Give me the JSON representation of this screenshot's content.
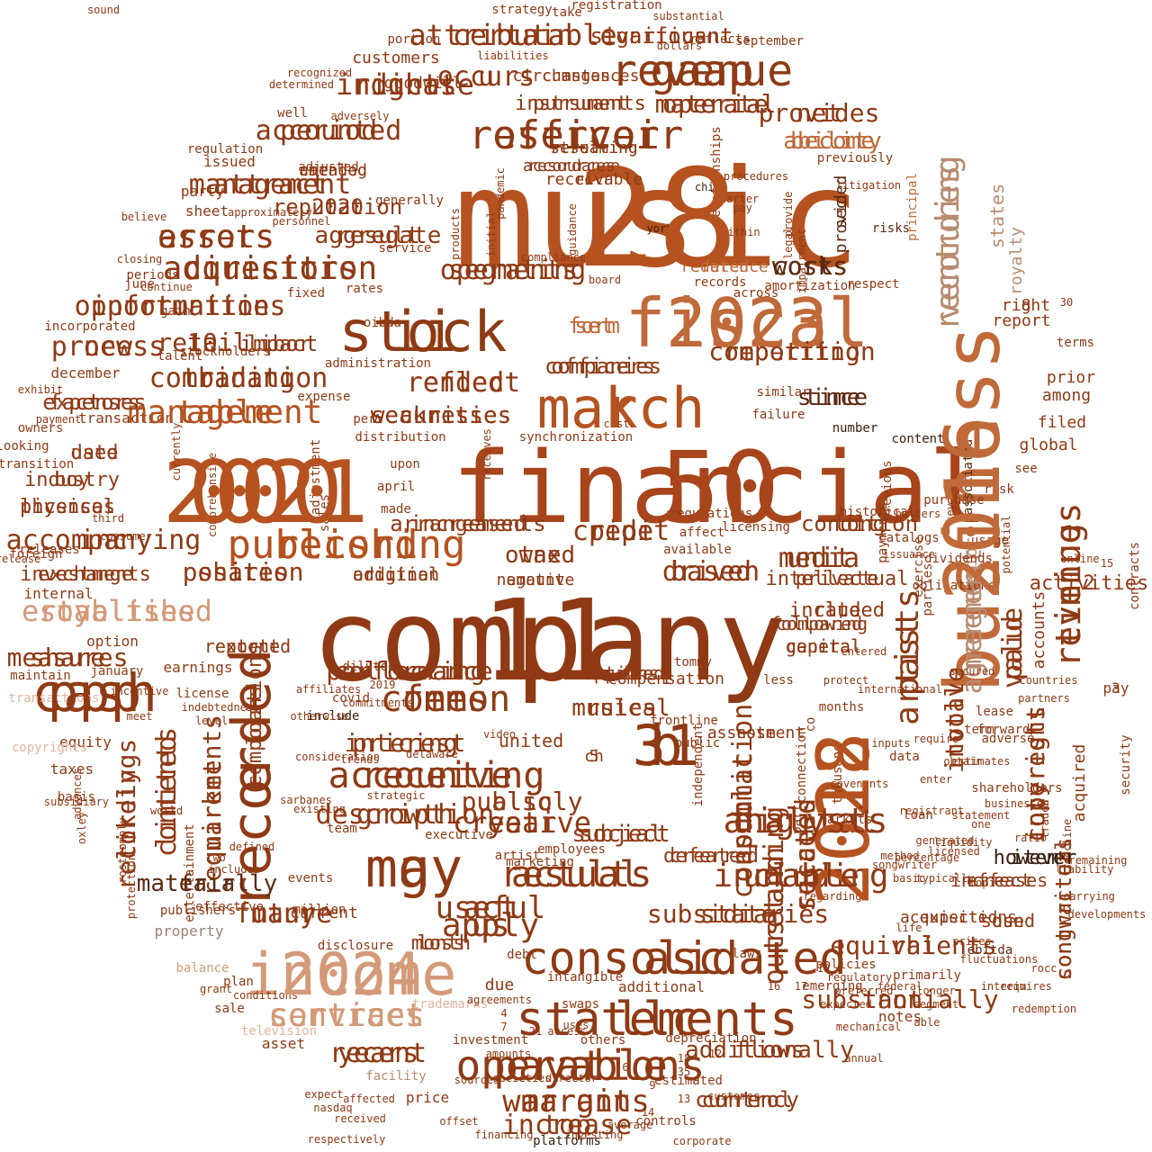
{
  "palette": {
    "c1": "#a8451b",
    "c2": "#b5521f",
    "c3": "#8f3a14",
    "c4": "#c06a3a",
    "c5": "#7a3210",
    "c6": "#d49a78",
    "c7": "#b88b70",
    "c8": "#5c2a10",
    "c9": "#e0b49c",
    "c10": "#9c8078",
    "c11": "#3a2010"
  },
  "words": [
    "music",
    "company",
    "financial",
    "2021",
    "business",
    "2022",
    "fiscal",
    "income",
    "stock",
    "march",
    "31",
    "recorded",
    "may",
    "cash",
    "consolidated",
    "statements",
    "revenue",
    "reservoir",
    "publishing",
    "operations",
    "revenues",
    "recording",
    "artists",
    "digital",
    "results",
    "accounting",
    "common",
    "acquisition",
    "assets",
    "including",
    "royalties",
    "warrants",
    "services",
    "table",
    "certain",
    "rights",
    "management",
    "information",
    "new",
    "inc",
    "combination",
    "reporting",
    "operating",
    "costs",
    "net",
    "period",
    "material",
    "media",
    "credit",
    "based",
    "shares",
    "share",
    "exchange",
    "market",
    "contents",
    "interest",
    "performance",
    "future",
    "growth",
    "subsidiaries",
    "rhi",
    "non",
    "agreement",
    "value",
    "copyright",
    "songwriters",
    "public",
    "total",
    "outstanding",
    "related",
    "years",
    "increase",
    "significant",
    "ended",
    "securities",
    "time",
    "ability",
    "companies",
    "form",
    "condition",
    "tax",
    "fair",
    "us",
    "act",
    "year",
    "subject",
    "also",
    "musical",
    "flows",
    "control",
    "item",
    "loss",
    "recordings",
    "compositions",
    "physical",
    "industry",
    "date",
    "expenses",
    "impact",
    "u",
    "pursuant",
    "changes",
    "streaming",
    "accordance",
    "roth",
    "catalog",
    "2020",
    "result",
    "sec",
    "increased",
    "addition",
    "amount",
    "required",
    "reported",
    "capital",
    "following",
    "rate",
    "intellectual",
    "reference",
    "10",
    "8",
    "2",
    "3",
    "5",
    "1",
    "note",
    "deferred",
    "effect",
    "use",
    "acquisitions",
    "current",
    "united",
    "filed",
    "prior",
    "report",
    "states",
    "royalty",
    "senior",
    "global",
    "among",
    "accounts",
    "acquired",
    "security",
    "contracts",
    "ebitda",
    "notes",
    "primarily",
    "emerging",
    "additional",
    "due",
    "debt",
    "investment",
    "others",
    "depreciation",
    "price",
    "facility",
    "asset",
    "property",
    "effective",
    "marketing",
    "artist",
    "employees",
    "executive",
    "team",
    "plan",
    "basis",
    "taxes",
    "equity",
    "license",
    "earnings",
    "maintain",
    "foreign",
    "internal",
    "exhibit",
    "december",
    "june",
    "closing",
    "incorporated",
    "rates",
    "oibda",
    "administration",
    "expense",
    "per",
    "upon",
    "april",
    "made",
    "sales",
    "adjustment",
    "distribution",
    "synchronization",
    "affect",
    "available",
    "regulations",
    "catalogs",
    "licensing",
    "number",
    "content",
    "associated",
    "see",
    "terms",
    "months",
    "thousand",
    "connection",
    "part",
    "data",
    "co",
    "less",
    "public",
    "independent",
    "tommy",
    "frontline",
    "covid",
    "include",
    "events",
    "million",
    "disclosure",
    "publishers",
    "protection",
    "balance",
    "grant",
    "sale",
    "conditions",
    "television",
    "transactions",
    "copyrights",
    "consideration",
    "entertainment",
    "policies",
    "laws",
    "intangible",
    "swaps",
    "trademarks",
    "estimated",
    "customer",
    "platforms",
    "investing",
    "sources",
    "societies",
    "director",
    "average",
    "controls",
    "york",
    "risks",
    "chief",
    "quarter",
    "pay",
    "within",
    "litigation",
    "principal",
    "previously",
    "provide",
    "procedures",
    "pandemic",
    "guidance",
    "compliance",
    "products",
    "initial",
    "board",
    "records",
    "amortization",
    "respect",
    "obligations",
    "purchase",
    "previous",
    "payments",
    "exercise",
    "issuance",
    "parties",
    "lease",
    "forward",
    "adverse",
    "term",
    "loan",
    "markets",
    "shareholders",
    "dividends",
    "usage",
    "key",
    "risk",
    "holders",
    "potential",
    "historical",
    "looking",
    "sound",
    "strategy",
    "registration",
    "substantial",
    "take",
    "portion",
    "liabilities",
    "dollars",
    "reflects",
    "september",
    "customers",
    "goodwill",
    "recognized",
    "determined",
    "well",
    "adversely",
    "issued",
    "adjusted",
    "regulation",
    "party",
    "sheet",
    "generally",
    "believe",
    "approximately",
    "personnel",
    "service",
    "periods",
    "continue",
    "gain",
    "fixed",
    "stockholders",
    "talent",
    "transaction",
    "owners",
    "payment",
    "transition",
    "currently",
    "comprehensive",
    "third",
    "consumer",
    "release",
    "releases",
    "option",
    "january",
    "meet",
    "incentive",
    "indebtedness",
    "level",
    "affiliates",
    "2019",
    "diluted",
    "commitments",
    "otherwise",
    "trends",
    "delaware",
    "strategic",
    "sarbanes",
    "existing",
    "defined",
    "includes",
    "two",
    "comply",
    "oxley",
    "advances",
    "subsidiary",
    "world",
    "roster",
    "video",
    "receives",
    "cost",
    "obtain",
    "international",
    "protect",
    "entered",
    "inputs",
    "secured",
    "statement",
    "businesses",
    "ratio",
    "traded",
    "partners",
    "countries",
    "mechanical",
    "annual",
    "preferred",
    "expected",
    "amounts",
    "agreements",
    "uses",
    "federal",
    "longer",
    "segment",
    "able",
    "decline",
    "developments",
    "remaining",
    "liability",
    "carrying",
    "expect",
    "nasdaq",
    "respectively",
    "offset",
    "financing",
    "corporate",
    "received",
    "affected",
    "across",
    "similar",
    "failure",
    "relationships",
    "impairment",
    "legal",
    "interim",
    "requires",
    "redemption",
    "prices",
    "fluctuations",
    "online",
    "topic",
    "regarding",
    "typically",
    "require",
    "estimates",
    "enter",
    "covenants",
    "registrant",
    "liquidity",
    "method",
    "percentage",
    "generated",
    "licensed",
    "songwriter",
    "basic",
    "one",
    "rocc",
    "regulatory",
    "life",
    "access",
    "21",
    "7",
    "4",
    "15",
    "30",
    "12",
    "18",
    "35",
    "6",
    "9",
    "13",
    "14",
    "16",
    "17",
    "19",
    "28",
    "11",
    "50",
    "000",
    "2016",
    "2018",
    "2023",
    "2024",
    "ii",
    "k",
    "b",
    "e",
    "g",
    "ppp",
    "asc",
    "llc",
    "gaap",
    "officer",
    "record",
    "payable",
    "timing",
    "ventures",
    "past",
    "analysts",
    "actual",
    "receive",
    "fees",
    "directors",
    "errors",
    "unable",
    "established",
    "margin",
    "contract",
    "management",
    "attributable",
    "indicate",
    "attract",
    "opportunities",
    "process",
    "accompanying",
    "trading",
    "competition",
    "segments",
    "works",
    "provides",
    "accounted",
    "operate",
    "unit",
    "pipe",
    "driven",
    "position",
    "measures",
    "investments",
    "requirements",
    "limited",
    "pricing",
    "collecting",
    "many",
    "description",
    "state",
    "equivalents",
    "substantially",
    "merger",
    "paid",
    "interests",
    "contractual",
    "consummation",
    "involve",
    "return",
    "success",
    "recent",
    "top",
    "various",
    "reflect",
    "weaknesses",
    "since",
    "become",
    "officers",
    "set",
    "long",
    "owned",
    "materially",
    "apply",
    "useful",
    "creative",
    "social",
    "publicly",
    "rules",
    "additionally",
    "currency",
    "however",
    "month",
    "likely",
    "loans",
    "licenses",
    "boy",
    "used",
    "factors",
    "libor",
    "occurs",
    "instruments",
    "circumstances",
    "resulting",
    "resources",
    "receivable",
    "amended",
    "reputation",
    "aggregate",
    "provided",
    "arrangements",
    "original",
    "negative",
    "options",
    "extent",
    "general",
    "compared",
    "included",
    "private",
    "dated",
    "retail",
    "right",
    "activities",
    "pay",
    "ch",
    "compensation",
    "assessment",
    "created",
    "increases",
    "sound",
    "expected"
  ]
}
